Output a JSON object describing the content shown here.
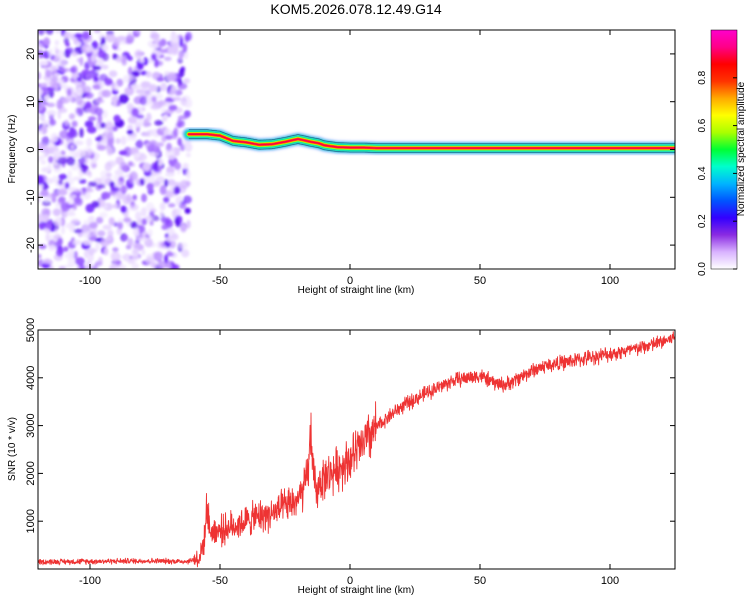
{
  "figure": {
    "title": "KOM5.2026.078.12.49.G14"
  },
  "chart_data": [
    {
      "type": "heatmap",
      "xlabel": "Height of straight line (km)",
      "ylabel": "Frequency (Hz)",
      "xlim": [
        -120,
        125
      ],
      "ylim": [
        -25,
        25
      ],
      "xticks": [
        -100,
        -50,
        0,
        50,
        100
      ],
      "yticks": [
        -20,
        -10,
        0,
        10,
        20
      ],
      "grid": false,
      "noise_region_x": [
        -120,
        -62
      ],
      "signal_ridge": {
        "x": [
          -62,
          -55,
          -50,
          -45,
          -40,
          -35,
          -30,
          -25,
          -20,
          -15,
          -12,
          -10,
          -5,
          0,
          5,
          10,
          20,
          50,
          100,
          125
        ],
        "freq": [
          3.2,
          3.2,
          2.9,
          1.8,
          1.5,
          1.0,
          1.1,
          1.6,
          2.2,
          1.6,
          1.3,
          0.9,
          0.5,
          0.4,
          0.4,
          0.3,
          0.3,
          0.3,
          0.3,
          0.3
        ]
      },
      "colorbar": {
        "label": "Normalized spectral amplitude",
        "range": [
          0.0,
          1.0
        ],
        "ticks": [
          0.0,
          0.2,
          0.4,
          0.6,
          0.8
        ],
        "tick_labels": [
          "0.0",
          "0.2",
          "0.4",
          "0.6",
          "0.8"
        ],
        "colors": [
          "#ffffff",
          "#d9b3ff",
          "#8a2be2",
          "#3300ff",
          "#0055ff",
          "#00b4ff",
          "#00ffcc",
          "#00ff33",
          "#aaff00",
          "#ffff00",
          "#ffaa00",
          "#ff3300",
          "#ff0000",
          "#ff0088",
          "#ff00cc"
        ]
      }
    },
    {
      "type": "line",
      "xlabel": "Height of straight line (km)",
      "ylabel": "SNR (10 * v/v)",
      "xlim": [
        -120,
        125
      ],
      "ylim": [
        0,
        5000
      ],
      "xticks": [
        -100,
        -50,
        0,
        50,
        100
      ],
      "yticks": [
        1000,
        2000,
        3000,
        4000,
        5000
      ],
      "grid": false,
      "series": [
        {
          "color": "#ee3333",
          "x": [
            -120,
            -100,
            -80,
            -62,
            -58,
            -56,
            -55,
            -54,
            -50,
            -45,
            -40,
            -35,
            -30,
            -25,
            -20,
            -18,
            -16,
            -15,
            -14,
            -13,
            -12,
            -10,
            -5,
            0,
            5,
            10,
            15,
            20,
            30,
            40,
            45,
            50,
            55,
            60,
            65,
            70,
            75,
            80,
            90,
            100,
            110,
            120,
            125
          ],
          "y": [
            150,
            160,
            170,
            160,
            250,
            600,
            1400,
            800,
            800,
            900,
            1000,
            1100,
            1150,
            1300,
            1450,
            1600,
            2100,
            2900,
            2000,
            1500,
            1800,
            1900,
            2100,
            2300,
            2600,
            2950,
            3200,
            3400,
            3700,
            3950,
            4000,
            4050,
            3900,
            3850,
            4000,
            4150,
            4250,
            4300,
            4400,
            4500,
            4600,
            4750,
            4850
          ]
        }
      ]
    }
  ]
}
